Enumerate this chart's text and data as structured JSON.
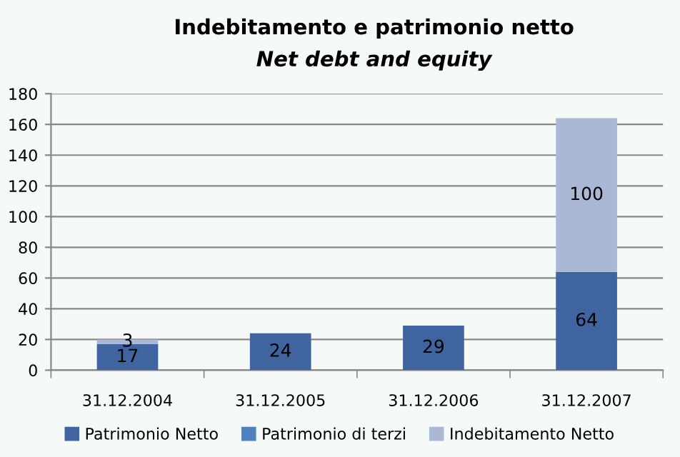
{
  "chart_data": {
    "type": "bar",
    "stacked": true,
    "title": "Indebitamento e patrimonio netto",
    "subtitle": "Net debt and equity",
    "categories": [
      "31.12.2004",
      "31.12.2005",
      "31.12.2006",
      "31.12.2007"
    ],
    "series": [
      {
        "name": "Patrimonio Netto",
        "color": "#3f64a0",
        "values": [
          17,
          24,
          29,
          64
        ],
        "value_labels": [
          "17",
          "24",
          "29",
          "64"
        ]
      },
      {
        "name": "Patrimonio di terzi",
        "color": "#4f81bd",
        "values": [
          null,
          null,
          null,
          null
        ]
      },
      {
        "name": "Indebitamento Netto",
        "color": "#a9b8d4",
        "values": [
          3,
          null,
          null,
          100
        ],
        "value_labels": [
          "3",
          null,
          null,
          "100"
        ]
      }
    ],
    "ylim": [
      0,
      180
    ],
    "yticks": [
      0,
      20,
      40,
      60,
      80,
      100,
      120,
      140,
      160,
      180
    ],
    "grid": "y",
    "legend": "bottom"
  }
}
